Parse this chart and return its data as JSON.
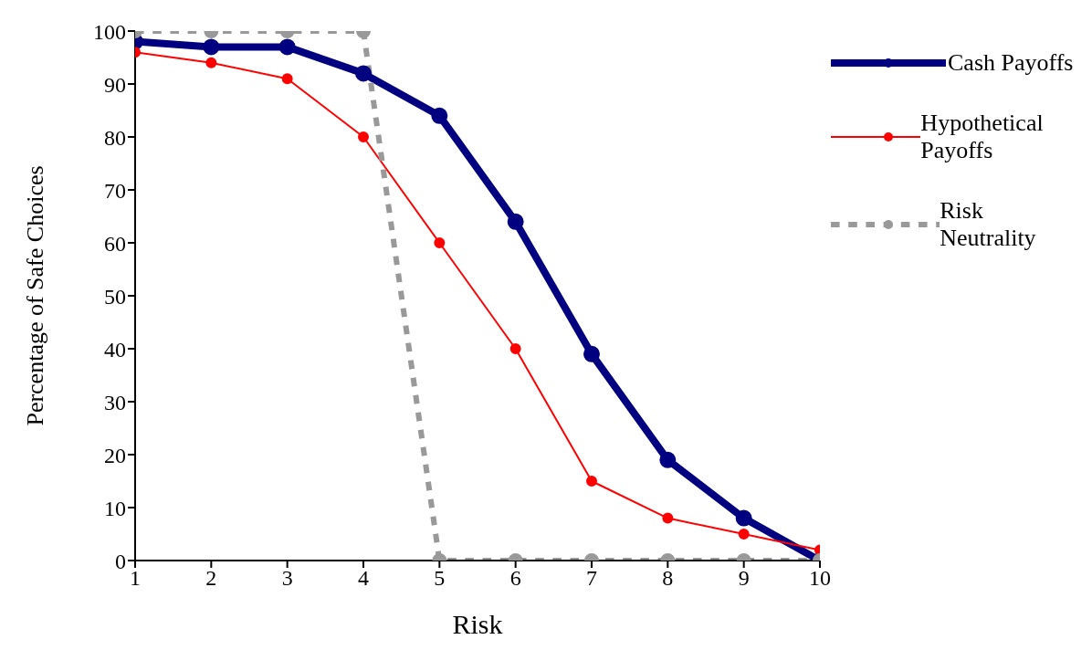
{
  "chart_data": {
    "type": "line",
    "xlabel": "Risk",
    "ylabel": "Percentage of Safe Choices",
    "x": [
      1,
      2,
      3,
      4,
      5,
      6,
      7,
      8,
      9,
      10
    ],
    "series": [
      {
        "name": "Cash Payoffs",
        "color": "#000080",
        "values": [
          98,
          97,
          97,
          92,
          84,
          64,
          39,
          19,
          8,
          0
        ],
        "line_style": "solid"
      },
      {
        "name": "Hypothetical Payoffs",
        "color": "#ff0000",
        "values": [
          96,
          94,
          91,
          80,
          60,
          40,
          15,
          8,
          5,
          2
        ],
        "line_style": "solid"
      },
      {
        "name": "Risk Neutrality",
        "color": "#999999",
        "values": [
          100,
          100,
          100,
          100,
          0,
          0,
          0,
          0,
          0,
          0
        ],
        "line_style": "dashed"
      }
    ],
    "xlim": [
      1,
      10
    ],
    "xticks": [
      1,
      2,
      3,
      4,
      5,
      6,
      7,
      8,
      9,
      10
    ],
    "ylim": [
      0,
      100
    ],
    "yticks": [
      0,
      10,
      20,
      30,
      40,
      50,
      60,
      70,
      80,
      90,
      100
    ],
    "grid": false,
    "legend": "right",
    "marker": "circle"
  }
}
